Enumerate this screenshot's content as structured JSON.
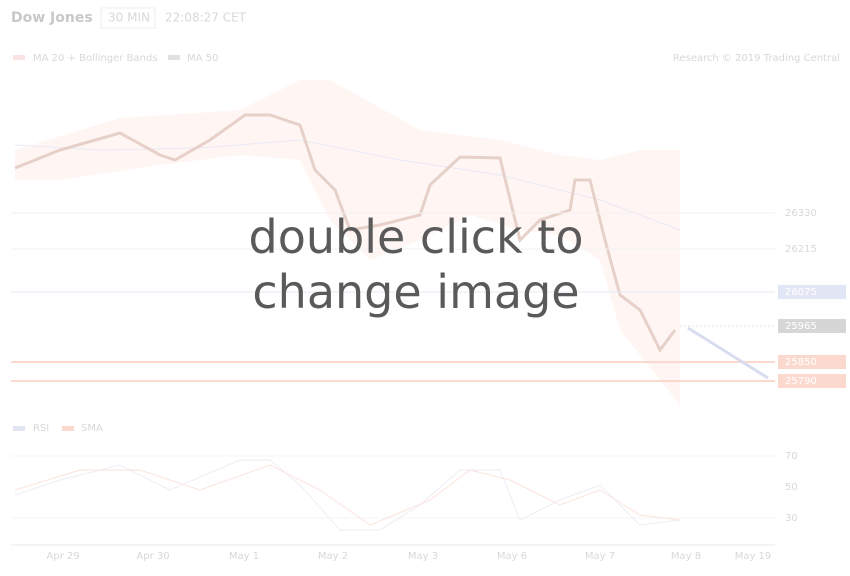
{
  "header": {
    "title": "Dow Jones",
    "interval": "30 MIN",
    "time": "22:08:27 CET"
  },
  "legend": [
    "MA 20 + Bollinger Bands",
    "MA 50"
  ],
  "credit": "Research © 2019 Trading Central",
  "price_levels": [
    "26330",
    "26215",
    "26075",
    "25965",
    "25850",
    "25790"
  ],
  "rsi_legend": [
    "RSI",
    "SMA"
  ],
  "rsi_ticks": [
    "70",
    "50",
    "30"
  ],
  "x_labels": [
    "Apr 29",
    "Apr 30",
    "May 1",
    "May 2",
    "May 3",
    "May 6",
    "May 7",
    "May 8",
    "May 19"
  ],
  "overlay": "double click to change image"
}
